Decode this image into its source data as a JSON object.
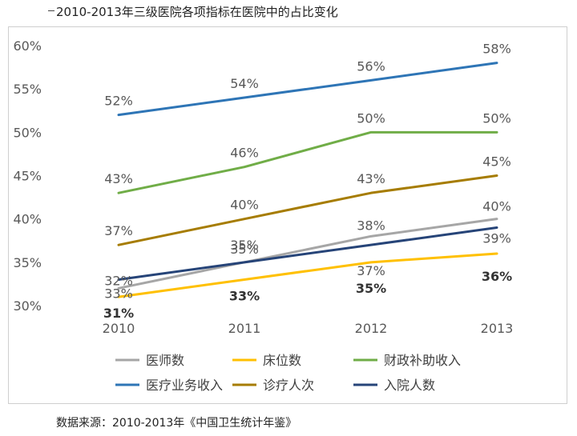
{
  "title": "2010-2013年三级医院各项指标在医院中的占比变化",
  "source": "数据来源：2010-2013年《中国卫生统计年鉴》",
  "chart_data": {
    "type": "line",
    "categories": [
      "2010",
      "2011",
      "2012",
      "2013"
    ],
    "ylim": [
      30,
      60
    ],
    "yticks": [
      "30%",
      "35%",
      "40%",
      "45%",
      "50%",
      "55%",
      "60%"
    ],
    "series": [
      {
        "name": "医师数",
        "color": "#a6a6a6",
        "values": [
          32,
          35,
          38,
          40
        ],
        "labels": [
          "32%",
          "35%",
          "38%",
          "40%"
        ]
      },
      {
        "name": "床位数",
        "color": "#ffc000",
        "values": [
          31,
          33,
          35,
          36
        ],
        "labels": [
          "31%",
          "33%",
          "35%",
          "36%"
        ]
      },
      {
        "name": "财政补助收入",
        "color": "#70ad47",
        "values": [
          43,
          46,
          50,
          50
        ],
        "labels": [
          "43%",
          "46%",
          "50%",
          "50%"
        ]
      },
      {
        "name": "医疗业务收入",
        "color": "#2e75b6",
        "values": [
          52,
          54,
          56,
          58
        ],
        "labels": [
          "52%",
          "54%",
          "56%",
          "58%"
        ]
      },
      {
        "name": "诊疗人次",
        "color": "#a67c00",
        "values": [
          37,
          40,
          43,
          45
        ],
        "labels": [
          "37%",
          "40%",
          "43%",
          "45%"
        ]
      },
      {
        "name": "入院人数",
        "color": "#264478",
        "values": [
          33,
          35,
          37,
          39
        ],
        "labels": [
          "33%",
          "35%",
          "37%",
          "39%"
        ]
      }
    ]
  }
}
